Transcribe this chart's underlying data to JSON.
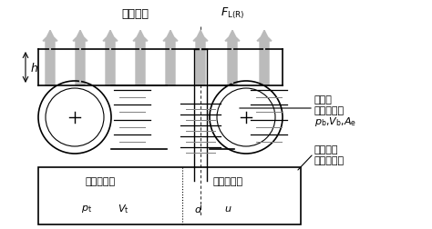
{
  "title": "",
  "bg_color": "#ffffff",
  "line_color": "#000000",
  "arrow_color": "#bbbbbb",
  "label_支点反力": "支点反力",
  "label_F": "$F_{\\mathrm{L(R)}}$",
  "label_h": "$h$",
  "label_補助タンク": "補助タンク",
  "label_オリフィス": "オリフィス",
  "label_pt": "$p_{\\mathrm{t}}$",
  "label_Vt": "$V_{\\mathrm{t}}$",
  "label_d": "$d$",
  "label_u": "$u$",
  "label_ゴム製": "ゴム製",
  "label_エアバック": "エアバック",
  "label_pb": "$p_{\\mathrm{b}}$,$V_{\\mathrm{b}}$,$A_{\\mathrm{e}}$",
  "label_緊急時用": "緊急時用",
  "label_ゴム製ばね": "ゴム製ばね",
  "figsize": [
    4.74,
    2.53
  ],
  "dpi": 100
}
